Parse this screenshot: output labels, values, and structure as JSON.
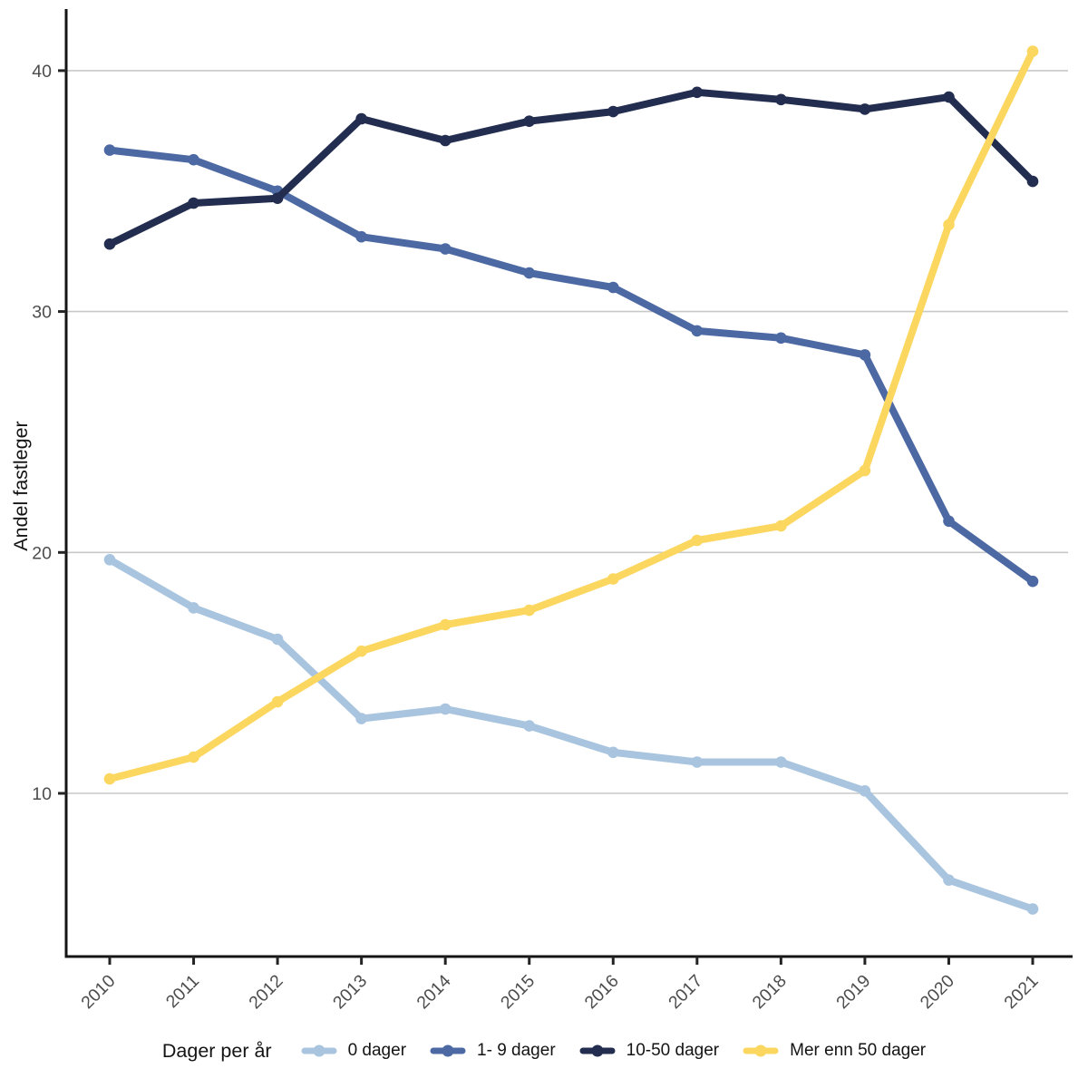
{
  "chart_data": {
    "type": "line",
    "title": "",
    "xlabel": "",
    "ylabel": "Andel fastleger",
    "legend_title": "Dager per år",
    "legend_position": "bottom",
    "grid": "horizontal-only",
    "x": [
      "2010",
      "2011",
      "2012",
      "2013",
      "2014",
      "2015",
      "2016",
      "2017",
      "2018",
      "2019",
      "2020",
      "2021"
    ],
    "y_ticks": [
      10,
      20,
      30,
      40
    ],
    "ylim": [
      3.2,
      42.6
    ],
    "series": [
      {
        "name": "0 dager",
        "color": "#a9c4de",
        "values": [
          19.7,
          17.7,
          16.4,
          13.1,
          13.5,
          12.8,
          11.7,
          11.3,
          11.3,
          10.1,
          6.4,
          5.2
        ]
      },
      {
        "name": "1- 9 dager",
        "color": "#4d69a4",
        "values": [
          36.7,
          36.3,
          35.0,
          33.1,
          32.6,
          31.6,
          31.0,
          29.2,
          28.9,
          28.2,
          21.3,
          18.8
        ]
      },
      {
        "name": "10-50 dager",
        "color": "#222d4f",
        "values": [
          32.8,
          34.5,
          34.7,
          38.0,
          37.1,
          37.9,
          38.3,
          39.1,
          38.8,
          38.4,
          38.9,
          35.4
        ]
      },
      {
        "name": "Mer enn 50 dager",
        "color": "#fbd760",
        "values": [
          10.6,
          11.5,
          13.8,
          15.9,
          17.0,
          17.6,
          18.9,
          20.5,
          21.1,
          23.4,
          33.6,
          40.8
        ]
      }
    ]
  },
  "colors": {
    "background": "#ffffff",
    "axis_line": "#141414",
    "gridline": "#c8c8c8",
    "tick_text": "#4d4d4d",
    "label_text": "#141414"
  }
}
